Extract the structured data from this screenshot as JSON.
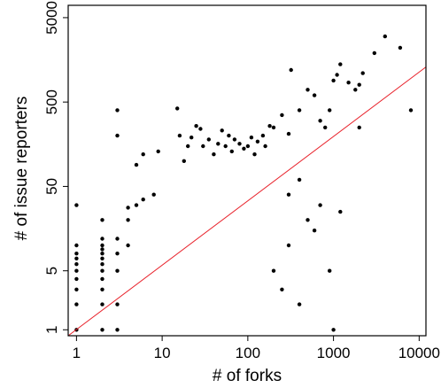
{
  "chart_data": {
    "type": "scatter",
    "title": "",
    "xlabel": "# of forks",
    "ylabel": "# of issue reporters",
    "x_scale": "log",
    "y_scale": "log",
    "xlim": [
      0.8,
      12000
    ],
    "ylim": [
      0.85,
      7000
    ],
    "x_ticks": [
      1,
      10,
      100,
      1000,
      10000
    ],
    "x_tick_labels": [
      "1",
      "10",
      "100",
      "1000",
      "10000"
    ],
    "y_ticks": [
      1,
      5,
      50,
      500,
      5000
    ],
    "y_tick_labels": [
      "1",
      "5",
      "50",
      "500",
      "5000"
    ],
    "grid": false,
    "legend": "none",
    "colors": {
      "points": "#000000",
      "fit_line": "#e8212a",
      "frame": "#000000"
    },
    "fit_line": {
      "x": [
        0.8,
        12000
      ],
      "y": [
        0.85,
        1300
      ]
    },
    "series": [
      {
        "points": [
          [
            1,
            1
          ],
          [
            1,
            2
          ],
          [
            1,
            3
          ],
          [
            1,
            4
          ],
          [
            1,
            5
          ],
          [
            1,
            6
          ],
          [
            1,
            7
          ],
          [
            1,
            8
          ],
          [
            1,
            10
          ],
          [
            1,
            30
          ],
          [
            2,
            1
          ],
          [
            2,
            2
          ],
          [
            2,
            3
          ],
          [
            2,
            4
          ],
          [
            2,
            5
          ],
          [
            2,
            6
          ],
          [
            2,
            7
          ],
          [
            2,
            8
          ],
          [
            2,
            9
          ],
          [
            2,
            10
          ],
          [
            2,
            12
          ],
          [
            2,
            20
          ],
          [
            3,
            1
          ],
          [
            3,
            2
          ],
          [
            3,
            5
          ],
          [
            3,
            8
          ],
          [
            3,
            12
          ],
          [
            3,
            200
          ],
          [
            3,
            400
          ],
          [
            4,
            10
          ],
          [
            4,
            20
          ],
          [
            4,
            28
          ],
          [
            5,
            30
          ],
          [
            5,
            90
          ],
          [
            6,
            35
          ],
          [
            6,
            120
          ],
          [
            8,
            40
          ],
          [
            9,
            130
          ],
          [
            15,
            420
          ],
          [
            16,
            200
          ],
          [
            18,
            100
          ],
          [
            20,
            150
          ],
          [
            22,
            190
          ],
          [
            25,
            260
          ],
          [
            28,
            240
          ],
          [
            30,
            150
          ],
          [
            35,
            180
          ],
          [
            40,
            120
          ],
          [
            45,
            160
          ],
          [
            50,
            230
          ],
          [
            55,
            150
          ],
          [
            60,
            200
          ],
          [
            65,
            130
          ],
          [
            70,
            180
          ],
          [
            80,
            160
          ],
          [
            90,
            140
          ],
          [
            100,
            150
          ],
          [
            110,
            190
          ],
          [
            120,
            120
          ],
          [
            130,
            170
          ],
          [
            150,
            200
          ],
          [
            160,
            150
          ],
          [
            180,
            260
          ],
          [
            200,
            250
          ],
          [
            250,
            350
          ],
          [
            300,
            210
          ],
          [
            320,
            1200
          ],
          [
            400,
            400
          ],
          [
            500,
            700
          ],
          [
            600,
            600
          ],
          [
            700,
            300
          ],
          [
            800,
            250
          ],
          [
            900,
            400
          ],
          [
            1000,
            900
          ],
          [
            1100,
            1050
          ],
          [
            1200,
            1400
          ],
          [
            1500,
            850
          ],
          [
            1800,
            700
          ],
          [
            2000,
            800
          ],
          [
            2200,
            1100
          ],
          [
            3000,
            1900
          ],
          [
            4000,
            3000
          ],
          [
            6000,
            2200
          ],
          [
            8000,
            400
          ],
          [
            300,
            40
          ],
          [
            400,
            60
          ],
          [
            500,
            20
          ],
          [
            600,
            15
          ],
          [
            700,
            30
          ],
          [
            900,
            5
          ],
          [
            1000,
            1
          ],
          [
            1200,
            25
          ],
          [
            2000,
            250
          ],
          [
            300,
            10
          ],
          [
            200,
            5
          ],
          [
            250,
            3
          ],
          [
            400,
            2
          ]
        ]
      }
    ]
  }
}
